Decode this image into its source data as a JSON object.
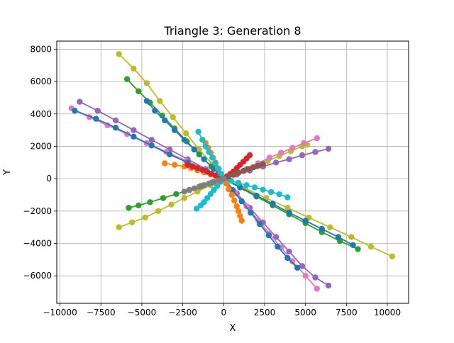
{
  "chart_data": {
    "type": "line",
    "title": "Triangle 3: Generation 8",
    "xlabel": "X",
    "ylabel": "Y",
    "xlim": [
      -10200,
      11300
    ],
    "ylim": [
      -7700,
      8500
    ],
    "xticks": [
      -10000,
      -7500,
      -5000,
      -2500,
      0,
      2500,
      5000,
      7500,
      10000
    ],
    "xtick_labels": [
      "−10000",
      "−7500",
      "−5000",
      "−2500",
      "0",
      "2500",
      "5000",
      "7500",
      "10000"
    ],
    "yticks": [
      -6000,
      -4000,
      -2000,
      0,
      2000,
      4000,
      6000,
      8000
    ],
    "ytick_labels": [
      "−6000",
      "−4000",
      "−2000",
      "0",
      "2000",
      "4000",
      "6000",
      "8000"
    ],
    "grid": true,
    "marker": "circle",
    "series_colors": [
      "#1f77b4",
      "#ff7f0e",
      "#2ca02c",
      "#d62728",
      "#9467bd",
      "#8c564b",
      "#e377c2",
      "#7f7f7f",
      "#bcbd22",
      "#17becf"
    ],
    "series": [
      {
        "color": "#bcbd22",
        "x": [
          0,
          -700,
          -1500,
          -2300,
          -3100,
          -3900,
          -4700,
          -5500,
          -6400
        ],
        "y": [
          0,
          900,
          1800,
          2800,
          3800,
          4800,
          5900,
          6800,
          7700
        ]
      },
      {
        "color": "#bcbd22",
        "x": [
          0,
          1300,
          2600,
          3900,
          5200,
          6500,
          7800,
          9000,
          10300
        ],
        "y": [
          0,
          -600,
          -1200,
          -1800,
          -2400,
          -3000,
          -3600,
          -4200,
          -4800
        ]
      },
      {
        "color": "#bcbd22",
        "x": [
          0,
          -800,
          -1600,
          -2400,
          -3200,
          -4000,
          -4800,
          -5600,
          -6400
        ],
        "y": [
          0,
          -400,
          -800,
          -1200,
          -1600,
          -2000,
          -2400,
          -2700,
          -3000
        ]
      },
      {
        "color": "#bcbd22",
        "x": [
          0,
          600,
          1300,
          2000,
          2700,
          3400,
          4100,
          4800,
          5100
        ],
        "y": [
          0,
          250,
          500,
          800,
          1100,
          1400,
          1700,
          2000,
          2100
        ]
      },
      {
        "color": "#9467bd",
        "x": [
          0,
          -1100,
          -2200,
          -3300,
          -4400,
          -5500,
          -6600,
          -7700,
          -8800
        ],
        "y": [
          0,
          600,
          1200,
          1800,
          2400,
          3000,
          3600,
          4200,
          4750
        ]
      },
      {
        "color": "#9467bd",
        "x": [
          0,
          800,
          1600,
          2400,
          3200,
          4000,
          4800,
          5600,
          6400
        ],
        "y": [
          0,
          250,
          500,
          750,
          1000,
          1200,
          1450,
          1650,
          1850
        ]
      },
      {
        "color": "#9467bd",
        "x": [
          0,
          800,
          1600,
          2400,
          3200,
          4000,
          4800,
          5600,
          6400
        ],
        "y": [
          0,
          -900,
          -1800,
          -2700,
          -3600,
          -4500,
          -5400,
          -6100,
          -6600
        ]
      },
      {
        "color": "#e377c2",
        "x": [
          0,
          -1100,
          -2300,
          -3500,
          -4700,
          -5900,
          -7100,
          -8200,
          -9300
        ],
        "y": [
          0,
          550,
          1100,
          1650,
          2200,
          2750,
          3300,
          3800,
          4350
        ]
      },
      {
        "color": "#e377c2",
        "x": [
          0,
          700,
          1400,
          2100,
          2800,
          3500,
          4200,
          5000,
          5700
        ],
        "y": [
          0,
          -850,
          -1700,
          -2550,
          -3400,
          -4250,
          -5100,
          -6000,
          -6800
        ]
      },
      {
        "color": "#e377c2",
        "x": [
          0,
          700,
          1400,
          2100,
          2800,
          3500,
          4200,
          4900,
          5700
        ],
        "y": [
          0,
          300,
          600,
          950,
          1300,
          1600,
          1900,
          2200,
          2500
        ]
      },
      {
        "color": "#2ca02c",
        "x": [
          0,
          -750,
          -1500,
          -2250,
          -3000,
          -3750,
          -4500,
          -5200,
          -5900
        ],
        "y": [
          0,
          750,
          1500,
          2300,
          3100,
          3900,
          4700,
          5400,
          6150
        ]
      },
      {
        "color": "#2ca02c",
        "x": [
          0,
          1000,
          2000,
          3000,
          4000,
          5000,
          6000,
          7100,
          8200
        ],
        "y": [
          0,
          -550,
          -1100,
          -1650,
          -2200,
          -2750,
          -3300,
          -3850,
          -4350
        ]
      },
      {
        "color": "#2ca02c",
        "x": [
          0,
          -700,
          -1400,
          -2100,
          -2900,
          -3700,
          -4500,
          -5200,
          -5800
        ],
        "y": [
          0,
          -230,
          -460,
          -700,
          -950,
          -1200,
          -1450,
          -1650,
          -1800
        ]
      },
      {
        "color": "#1f77b4",
        "x": [
          0,
          -1100,
          -2200,
          -3300,
          -4400,
          -5500,
          -6600,
          -7800,
          -9100
        ],
        "y": [
          0,
          500,
          1000,
          1500,
          2050,
          2600,
          3150,
          3700,
          4200
        ]
      },
      {
        "color": "#1f77b4",
        "x": [
          0,
          550,
          1100,
          1650,
          2200,
          2750,
          3300,
          3900,
          4500
        ],
        "y": [
          0,
          -700,
          -1400,
          -2100,
          -2800,
          -3500,
          -4200,
          -4900,
          -5500
        ]
      },
      {
        "color": "#1f77b4",
        "x": [
          0,
          1000,
          2000,
          3000,
          4000,
          5000,
          6000,
          7000,
          7900
        ],
        "y": [
          0,
          -520,
          -1050,
          -1550,
          -2100,
          -2600,
          -3100,
          -3600,
          -4100
        ]
      },
      {
        "color": "#1f77b4",
        "x": [
          0,
          -600,
          -1200,
          -1800,
          -2400,
          -3000,
          -3600,
          -4200,
          -4700
        ],
        "y": [
          0,
          600,
          1200,
          1800,
          2400,
          3000,
          3600,
          4200,
          4800
        ]
      },
      {
        "color": "#ff7f0e",
        "x": [
          0,
          -400,
          -800,
          -1200,
          -1600,
          -2000,
          -2400,
          -3000,
          -3600
        ],
        "y": [
          0,
          130,
          260,
          390,
          520,
          650,
          750,
          850,
          950
        ]
      },
      {
        "color": "#ff7f0e",
        "x": [
          0,
          150,
          300,
          500,
          650,
          800,
          900,
          1000,
          1100
        ],
        "y": [
          0,
          -300,
          -650,
          -1000,
          -1350,
          -1700,
          -2000,
          -2300,
          -2600
        ]
      },
      {
        "color": "#ff7f0e",
        "x": [
          0,
          -200,
          -350,
          -500,
          -650,
          -800,
          -950,
          -1100,
          -1300
        ],
        "y": [
          0,
          300,
          650,
          1000,
          1300,
          1600,
          1900,
          2200,
          2400
        ]
      },
      {
        "color": "#d62728",
        "x": [
          0,
          -250,
          -500,
          -750,
          -1000,
          -1300,
          -1600,
          -1900,
          -2200
        ],
        "y": [
          0,
          100,
          200,
          300,
          420,
          540,
          650,
          750,
          850
        ]
      },
      {
        "color": "#d62728",
        "x": [
          0,
          200,
          400,
          600,
          800,
          1000,
          1200,
          1400,
          1600
        ],
        "y": [
          0,
          150,
          300,
          450,
          650,
          850,
          1050,
          1250,
          1450
        ]
      },
      {
        "color": "#17becf",
        "x": [
          0,
          -150,
          -300,
          -500,
          -700,
          -900,
          -1100,
          -1300,
          -1550
        ],
        "y": [
          0,
          300,
          600,
          950,
          1300,
          1650,
          2000,
          2400,
          2900
        ]
      },
      {
        "color": "#17becf",
        "x": [
          0,
          450,
          900,
          1400,
          1900,
          2400,
          2900,
          3400,
          3900
        ],
        "y": [
          0,
          -130,
          -260,
          -400,
          -540,
          -680,
          -820,
          -960,
          -1150
        ]
      },
      {
        "color": "#17becf",
        "x": [
          0,
          -200,
          -400,
          -600,
          -800,
          -1000,
          -1200,
          -1400,
          -1650
        ],
        "y": [
          0,
          -200,
          -450,
          -700,
          -950,
          -1200,
          -1450,
          -1650,
          -1850
        ]
      },
      {
        "color": "#8c564b",
        "x": [
          0,
          300,
          600,
          900,
          1200,
          1500,
          1800,
          2100,
          2400
        ],
        "y": [
          0,
          120,
          240,
          360,
          480,
          600,
          700,
          800,
          900
        ]
      },
      {
        "color": "#7f7f7f",
        "x": [
          0,
          -300,
          -600,
          -900,
          -1200,
          -1500,
          -1800,
          -2100,
          -2400
        ],
        "y": [
          0,
          -100,
          -200,
          -300,
          -400,
          -500,
          -600,
          -700,
          -800
        ]
      }
    ]
  }
}
